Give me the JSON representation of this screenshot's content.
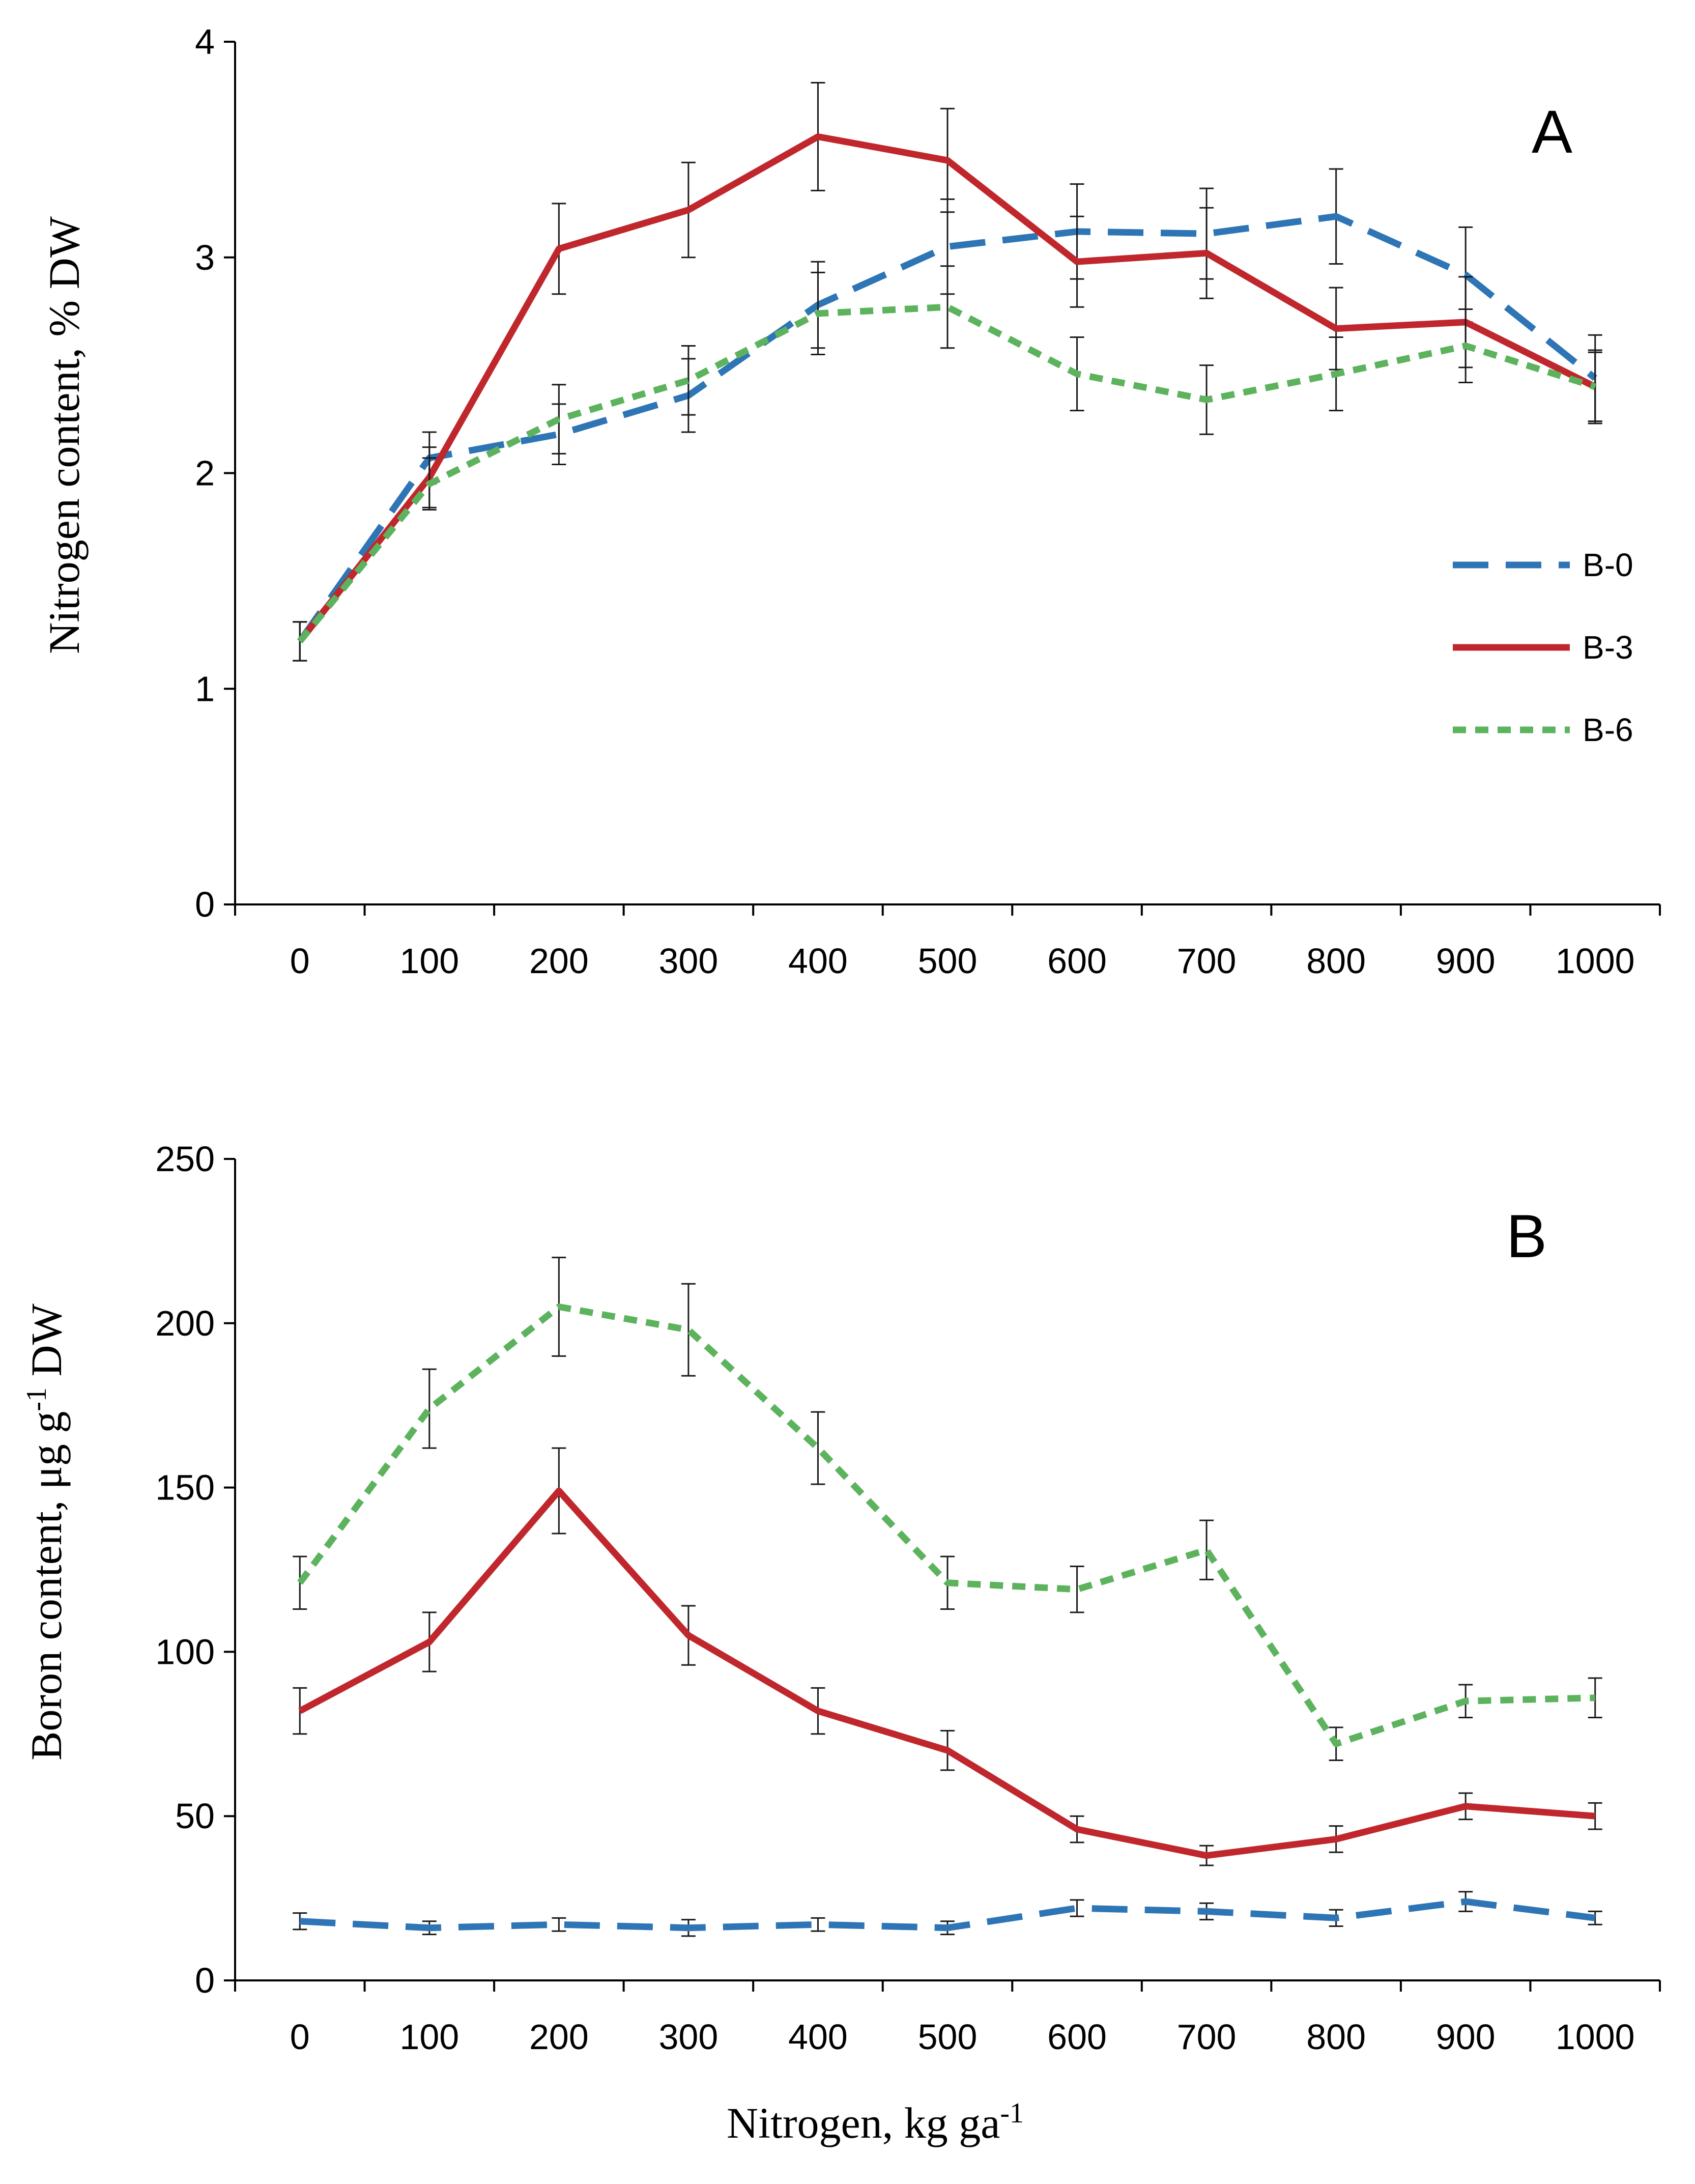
{
  "figure": {
    "xlabel_main": "Nitrogen, kg ga",
    "xlabel_sup": "-1"
  },
  "chart_data": [
    {
      "id": "A",
      "type": "line",
      "panel_label": "A",
      "title": "",
      "ylabel": "Nitrogen content, % DW",
      "ylabel_parts": {
        "main": "Nitrogen content, % DW"
      },
      "xlabel": "",
      "categories": [
        "0",
        "100",
        "200",
        "300",
        "400",
        "500",
        "600",
        "700",
        "800",
        "900",
        "1000"
      ],
      "ylim": [
        0,
        4
      ],
      "yticks": [
        0,
        1,
        2,
        3,
        4
      ],
      "ytick_labels": [
        "0",
        "1",
        "2",
        "3",
        "4"
      ],
      "legend_position": "right",
      "series": [
        {
          "name": "B-0",
          "color": "#2E75B6",
          "dash": "long-dash",
          "values": [
            1.22,
            2.07,
            2.18,
            2.36,
            2.78,
            3.05,
            3.12,
            3.11,
            3.19,
            2.92,
            2.44
          ],
          "errors": [
            0.09,
            0.12,
            0.14,
            0.17,
            0.2,
            0.22,
            0.22,
            0.21,
            0.22,
            0.22,
            0.2
          ]
        },
        {
          "name": "B-3",
          "color": "#C0272D",
          "dash": "solid",
          "values": [
            1.22,
            1.98,
            3.04,
            3.22,
            3.56,
            3.45,
            2.98,
            3.02,
            2.67,
            2.7,
            2.4
          ],
          "errors": [
            0.09,
            0.14,
            0.21,
            0.22,
            0.25,
            0.24,
            0.21,
            0.21,
            0.19,
            0.21,
            0.17
          ]
        },
        {
          "name": "B-6",
          "color": "#5DB35D",
          "dash": "short-dash",
          "values": [
            1.22,
            1.95,
            2.25,
            2.43,
            2.74,
            2.77,
            2.46,
            2.34,
            2.46,
            2.59,
            2.4
          ],
          "errors": [
            0.09,
            0.12,
            0.16,
            0.16,
            0.19,
            0.19,
            0.17,
            0.16,
            0.17,
            0.17,
            0.16
          ]
        }
      ]
    },
    {
      "id": "B",
      "type": "line",
      "panel_label": "B",
      "title": "",
      "ylabel": "Boron content, μg g-1 DW",
      "ylabel_parts": {
        "pre": "Boron content, μg g",
        "sup": "-1",
        "post": " DW"
      },
      "xlabel": "Nitrogen, kg ga-1",
      "categories": [
        "0",
        "100",
        "200",
        "300",
        "400",
        "500",
        "600",
        "700",
        "800",
        "900",
        "1000"
      ],
      "ylim": [
        0,
        250
      ],
      "yticks": [
        0,
        50,
        100,
        150,
        200,
        250
      ],
      "ytick_labels": [
        "0",
        "50",
        "100",
        "150",
        "200",
        "250"
      ],
      "series": [
        {
          "name": "B-0",
          "color": "#2E75B6",
          "dash": "long-dash",
          "values": [
            18,
            16,
            17,
            16,
            17,
            16,
            22,
            21,
            19,
            24,
            19
          ],
          "errors": [
            2.5,
            2,
            2,
            2.5,
            2,
            2,
            2.5,
            2.5,
            2.5,
            3,
            2
          ]
        },
        {
          "name": "B-3",
          "color": "#C0272D",
          "dash": "solid",
          "values": [
            82,
            103,
            149,
            105,
            82,
            70,
            46,
            38,
            43,
            53,
            50
          ],
          "errors": [
            7,
            9,
            13,
            9,
            7,
            6,
            4,
            3,
            4,
            4,
            4
          ]
        },
        {
          "name": "B-6",
          "color": "#5DB35D",
          "dash": "short-dash",
          "values": [
            121,
            174,
            205,
            198,
            162,
            121,
            119,
            131,
            72,
            85,
            86
          ],
          "errors": [
            8,
            12,
            15,
            14,
            11,
            8,
            7,
            9,
            5,
            5,
            6
          ]
        }
      ]
    }
  ]
}
